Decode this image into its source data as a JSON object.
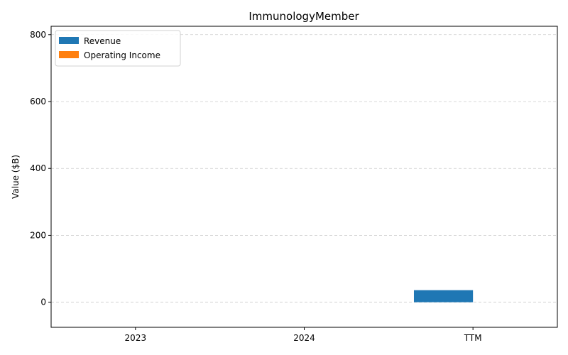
{
  "chart_data": {
    "type": "bar",
    "title": "ImmunologyMember",
    "xlabel": "",
    "ylabel": "Value ($B)",
    "categories": [
      "2023",
      "2024",
      "TTM"
    ],
    "series": [
      {
        "name": "Revenue",
        "color": "#1f77b4",
        "values": [
          0,
          0,
          36
        ]
      },
      {
        "name": "Operating Income",
        "color": "#ff7f0e",
        "values": [
          0,
          0,
          0
        ]
      }
    ],
    "ylim": [
      -75,
      825
    ],
    "yticks": [
      0,
      200,
      400,
      600,
      800
    ],
    "grid": "y, dashed",
    "legend": "top-left"
  }
}
